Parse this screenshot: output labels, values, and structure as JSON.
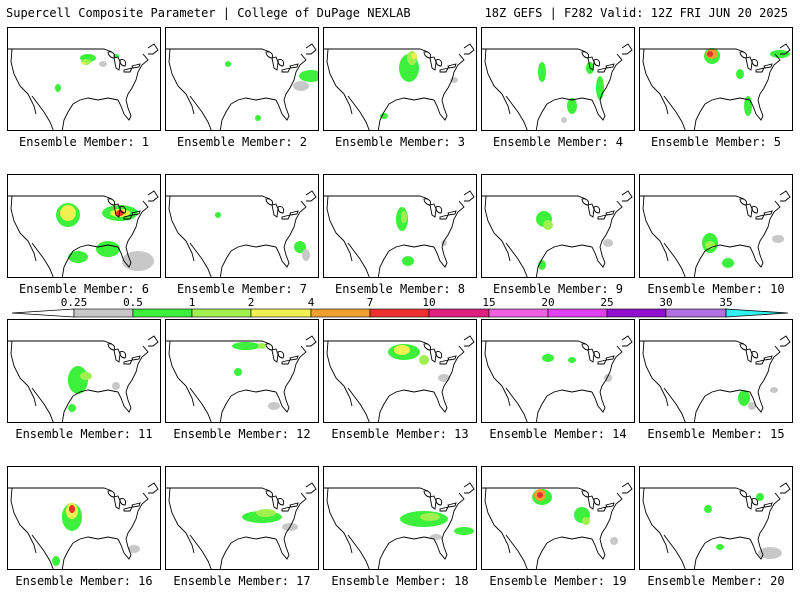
{
  "header": {
    "left": "Supercell Composite Parameter | College of DuPage NEXLAB",
    "right": "18Z GEFS | F282 Valid: 12Z FRI JUN 20 2025"
  },
  "legend": {
    "ticks": [
      "0.25",
      "0.5",
      "1",
      "2",
      "4",
      "7",
      "10",
      "15",
      "20",
      "25",
      "30",
      "35"
    ],
    "colors": [
      "#c8c8c8",
      "#3cf03c",
      "#a0f050",
      "#f0f050",
      "#f0a030",
      "#f03030",
      "#e02080",
      "#f060e0",
      "#e040f0",
      "#9010d0",
      "#b070e0",
      "#30f0f0"
    ]
  },
  "members": [
    {
      "label": "Ensemble Member: 1"
    },
    {
      "label": "Ensemble Member: 2"
    },
    {
      "label": "Ensemble Member: 3"
    },
    {
      "label": "Ensemble Member: 4"
    },
    {
      "label": "Ensemble Member: 5"
    },
    {
      "label": "Ensemble Member: 6"
    },
    {
      "label": "Ensemble Member: 7"
    },
    {
      "label": "Ensemble Member: 8"
    },
    {
      "label": "Ensemble Member: 9"
    },
    {
      "label": "Ensemble Member: 10"
    },
    {
      "label": "Ensemble Member: 11"
    },
    {
      "label": "Ensemble Member: 12"
    },
    {
      "label": "Ensemble Member: 13"
    },
    {
      "label": "Ensemble Member: 14"
    },
    {
      "label": "Ensemble Member: 15"
    },
    {
      "label": "Ensemble Member: 16"
    },
    {
      "label": "Ensemble Member: 17"
    },
    {
      "label": "Ensemble Member: 18"
    },
    {
      "label": "Ensemble Member: 19"
    },
    {
      "label": "Ensemble Member: 20"
    }
  ]
}
